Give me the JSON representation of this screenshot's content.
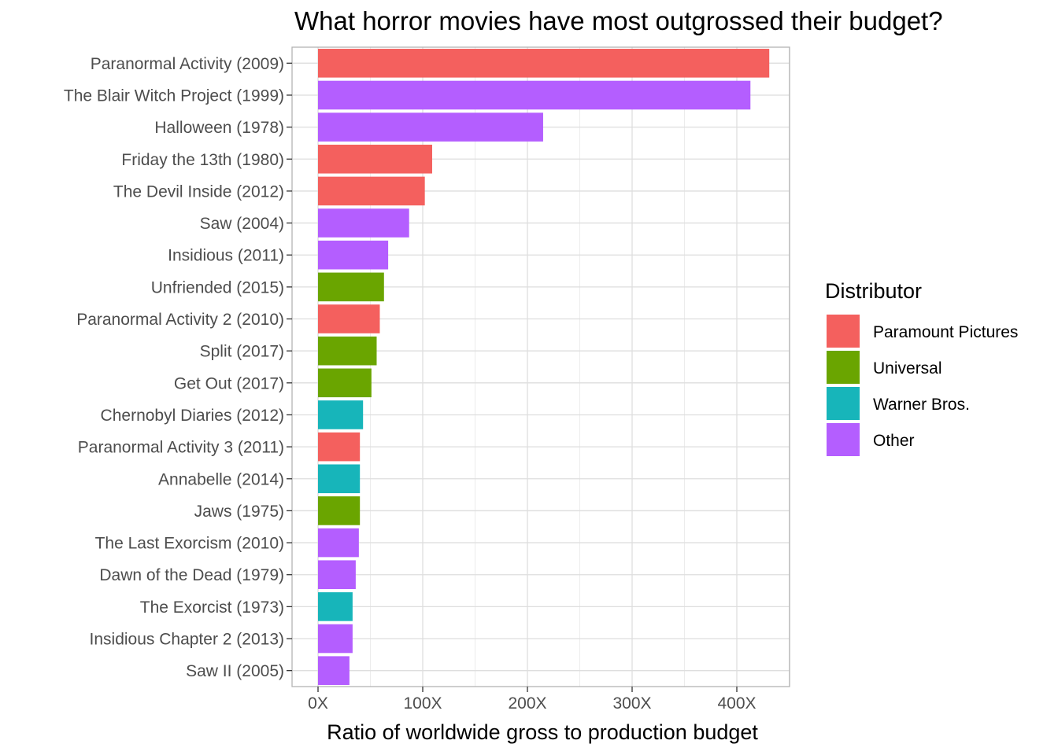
{
  "chart_data": {
    "type": "bar",
    "orientation": "horizontal",
    "title": "What horror movies have most outgrossed their budget?",
    "xlabel": "Ratio of worldwide gross to production budget",
    "ylabel": "",
    "xlim": [
      -23,
      450
    ],
    "xticks": [
      0,
      100,
      200,
      300,
      400
    ],
    "xtick_labels": [
      "0X",
      "100X",
      "200X",
      "300X",
      "400X"
    ],
    "grid": true,
    "legend": {
      "title": "Distributor",
      "position": "right",
      "entries": [
        {
          "name": "Paramount Pictures",
          "color": "#F8766D"
        },
        {
          "name": "Universal",
          "color": "#7CAE00"
        },
        {
          "name": "Warner Bros.",
          "color": "#00BFC4"
        },
        {
          "name": "Other",
          "color": "#C77CFF"
        }
      ]
    },
    "bar_colors": {
      "Paramount Pictures": "#F4605E",
      "Universal": "#6AA500",
      "Warner Bros.": "#17B5BA",
      "Other": "#B45EFF"
    },
    "bars": [
      {
        "label": "Paranormal Activity (2009)",
        "value": 431,
        "distributor": "Paramount Pictures"
      },
      {
        "label": "The Blair Witch Project (1999)",
        "value": 413,
        "distributor": "Other"
      },
      {
        "label": "Halloween (1978)",
        "value": 215,
        "distributor": "Other"
      },
      {
        "label": "Friday the 13th (1980)",
        "value": 109,
        "distributor": "Paramount Pictures"
      },
      {
        "label": "The Devil Inside (2012)",
        "value": 102,
        "distributor": "Paramount Pictures"
      },
      {
        "label": "Saw (2004)",
        "value": 87,
        "distributor": "Other"
      },
      {
        "label": "Insidious (2011)",
        "value": 67,
        "distributor": "Other"
      },
      {
        "label": "Unfriended (2015)",
        "value": 63,
        "distributor": "Universal"
      },
      {
        "label": "Paranormal Activity 2 (2010)",
        "value": 59,
        "distributor": "Paramount Pictures"
      },
      {
        "label": "Split (2017)",
        "value": 56,
        "distributor": "Universal"
      },
      {
        "label": "Get Out (2017)",
        "value": 51,
        "distributor": "Universal"
      },
      {
        "label": "Chernobyl Diaries (2012)",
        "value": 43,
        "distributor": "Warner Bros."
      },
      {
        "label": "Paranormal Activity 3 (2011)",
        "value": 40,
        "distributor": "Paramount Pictures"
      },
      {
        "label": "Annabelle (2014)",
        "value": 40,
        "distributor": "Warner Bros."
      },
      {
        "label": "Jaws (1975)",
        "value": 40,
        "distributor": "Universal"
      },
      {
        "label": "The Last Exorcism (2010)",
        "value": 39,
        "distributor": "Other"
      },
      {
        "label": "Dawn of the Dead (1979)",
        "value": 36,
        "distributor": "Other"
      },
      {
        "label": "The Exorcist (1973)",
        "value": 33,
        "distributor": "Warner Bros."
      },
      {
        "label": "Insidious Chapter 2 (2013)",
        "value": 33,
        "distributor": "Other"
      },
      {
        "label": "Saw II (2005)",
        "value": 30,
        "distributor": "Other"
      }
    ]
  }
}
